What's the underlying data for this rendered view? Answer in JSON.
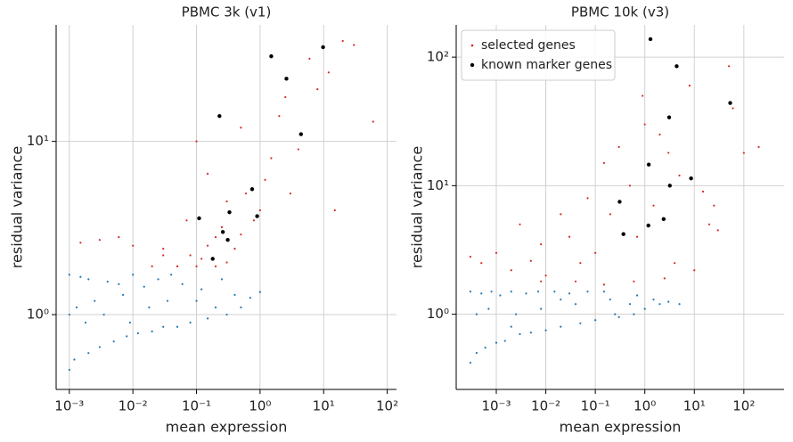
{
  "chart_data": [
    {
      "type": "scatter",
      "title": "PBMC 3k (v1)",
      "xlabel": "mean expression",
      "ylabel": "residual variance",
      "log_x": true,
      "log_y": true,
      "grid": true,
      "xlim": [
        0.00062,
        140
      ],
      "ylim": [
        0.37,
        47
      ],
      "xticks": [
        {
          "value": 0.001,
          "label": "10⁻³"
        },
        {
          "value": 0.01,
          "label": "10⁻²"
        },
        {
          "value": 0.1,
          "label": "10⁻¹"
        },
        {
          "value": 1,
          "label": "10⁰"
        },
        {
          "value": 10,
          "label": "10¹"
        },
        {
          "value": 100,
          "label": "10²"
        }
      ],
      "yticks": [
        {
          "value": 1,
          "label": "10⁰"
        },
        {
          "value": 10,
          "label": "10¹"
        }
      ],
      "series": [
        {
          "color": "#1f77b4",
          "x": [
            0.001,
            0.001,
            0.0012,
            0.0015,
            0.002,
            0.002,
            0.003,
            0.004,
            0.005,
            0.006,
            0.008,
            0.01,
            0.012,
            0.015,
            0.02,
            0.025,
            0.03,
            0.04,
            0.05,
            0.06,
            0.08,
            0.1,
            0.12,
            0.15,
            0.2,
            0.25,
            0.3,
            0.4,
            0.5,
            0.7,
            1.0,
            0.001,
            0.0013,
            0.0018,
            0.0025,
            0.0035,
            0.007,
            0.009,
            0.018,
            0.035
          ],
          "values": [
            0.48,
            1.7,
            0.55,
            1.65,
            0.6,
            1.6,
            0.65,
            1.55,
            0.7,
            1.5,
            0.75,
            1.7,
            0.78,
            1.45,
            0.8,
            1.6,
            0.85,
            1.7,
            0.85,
            1.5,
            0.9,
            1.2,
            1.4,
            0.95,
            1.1,
            1.6,
            1.0,
            1.3,
            1.1,
            1.25,
            1.35,
            1.0,
            1.1,
            0.9,
            1.2,
            1.0,
            1.3,
            0.9,
            1.1,
            1.2
          ]
        },
        {
          "color": "#d62728",
          "x": [
            0.0015,
            0.003,
            0.006,
            0.01,
            0.02,
            0.03,
            0.05,
            0.07,
            0.1,
            0.1,
            0.12,
            0.15,
            0.15,
            0.2,
            0.2,
            0.25,
            0.3,
            0.3,
            0.4,
            0.5,
            0.6,
            0.8,
            1.0,
            1.2,
            1.5,
            2,
            3,
            4,
            6,
            8,
            12,
            20,
            30,
            60,
            0.08,
            0.05,
            0.03,
            0.5,
            2.5,
            15
          ],
          "values": [
            2.6,
            2.7,
            2.8,
            2.5,
            1.9,
            2.2,
            1.9,
            3.5,
            1.9,
            10,
            2.1,
            2.5,
            6.5,
            1.9,
            2.8,
            3.2,
            2.0,
            4.5,
            2.4,
            2.9,
            5,
            3.5,
            4,
            6,
            8,
            14,
            5,
            9,
            30,
            20,
            25,
            38,
            36,
            13,
            2.2,
            1.9,
            2.4,
            12,
            18,
            4
          ]
        },
        {
          "color": "#000000",
          "x": [
            9.8,
            1.5,
            2.6,
            4.4,
            0.23,
            0.75,
            0.9,
            0.11,
            0.26,
            0.33,
            0.31,
            0.18
          ],
          "values": [
            35,
            31,
            23,
            11,
            14,
            5.3,
            3.7,
            3.6,
            3.0,
            3.9,
            2.7,
            2.1
          ]
        }
      ]
    },
    {
      "type": "scatter",
      "title": "PBMC 10k (v3)",
      "xlabel": "mean expression",
      "ylabel": "residual variance",
      "log_x": true,
      "log_y": true,
      "grid": true,
      "legend": "upper left",
      "xlim": [
        0.000155,
        650
      ],
      "ylim": [
        0.26,
        178
      ],
      "xticks": [
        {
          "value": 0.001,
          "label": "10⁻³"
        },
        {
          "value": 0.01,
          "label": "10⁻²"
        },
        {
          "value": 0.1,
          "label": "10⁻¹"
        },
        {
          "value": 1,
          "label": "10⁰"
        },
        {
          "value": 10,
          "label": "10¹"
        },
        {
          "value": 100,
          "label": "10²"
        }
      ],
      "yticks": [
        {
          "value": 1,
          "label": "10⁰"
        },
        {
          "value": 10,
          "label": "10¹"
        },
        {
          "value": 100,
          "label": "10²"
        }
      ],
      "series": [
        {
          "color": "#1f77b4",
          "x": [
            0.0003,
            0.0003,
            0.0004,
            0.0005,
            0.0006,
            0.0008,
            0.001,
            0.0012,
            0.0015,
            0.002,
            0.003,
            0.004,
            0.005,
            0.007,
            0.01,
            0.015,
            0.02,
            0.03,
            0.05,
            0.07,
            0.1,
            0.15,
            0.2,
            0.3,
            0.5,
            0.7,
            1,
            1.5,
            2,
            3,
            5,
            0.0004,
            0.0007,
            0.0025,
            0.008,
            0.04,
            0.25,
            0.002,
            0.02,
            0.6
          ],
          "values": [
            0.42,
            1.5,
            0.5,
            1.45,
            0.55,
            1.5,
            0.6,
            1.4,
            0.62,
            1.5,
            0.7,
            1.45,
            0.72,
            1.5,
            0.75,
            1.5,
            0.8,
            1.45,
            0.85,
            1.5,
            0.9,
            1.5,
            1.3,
            0.95,
            1.2,
            1.4,
            1.1,
            1.3,
            1.2,
            1.25,
            1.2,
            1.0,
            1.1,
            1.0,
            1.1,
            1.2,
            1.0,
            0.8,
            1.3,
            1.0
          ]
        },
        {
          "name": "selected genes",
          "color": "#d62728",
          "x": [
            0.0003,
            0.0005,
            0.001,
            0.002,
            0.003,
            0.005,
            0.008,
            0.01,
            0.02,
            0.03,
            0.05,
            0.07,
            0.1,
            0.15,
            0.2,
            0.3,
            0.5,
            0.7,
            1,
            1.5,
            2,
            3,
            5,
            8,
            10,
            15,
            20,
            30,
            50,
            60,
            100,
            200,
            0.04,
            0.008,
            0.6,
            0.15,
            4,
            25,
            2.5,
            0.9
          ],
          "values": [
            2.8,
            2.5,
            3,
            2.2,
            5,
            2.6,
            3.5,
            2,
            6,
            4,
            2.5,
            8,
            3,
            15,
            6,
            20,
            10,
            4,
            30,
            7,
            25,
            18,
            12,
            60,
            2.2,
            9,
            5,
            4.5,
            85,
            40,
            18,
            20,
            1.8,
            1.8,
            1.8,
            1.7,
            2.5,
            7,
            1.9,
            50
          ]
        },
        {
          "name": "known marker genes",
          "color": "#000000",
          "x": [
            1.3,
            4.4,
            53,
            3.1,
            1.2,
            8.6,
            0.31,
            3.2,
            1.18,
            2.4,
            0.37
          ],
          "values": [
            138,
            85,
            44,
            34,
            14.6,
            11.4,
            7.5,
            10,
            4.9,
            5.5,
            4.2
          ]
        }
      ]
    }
  ]
}
